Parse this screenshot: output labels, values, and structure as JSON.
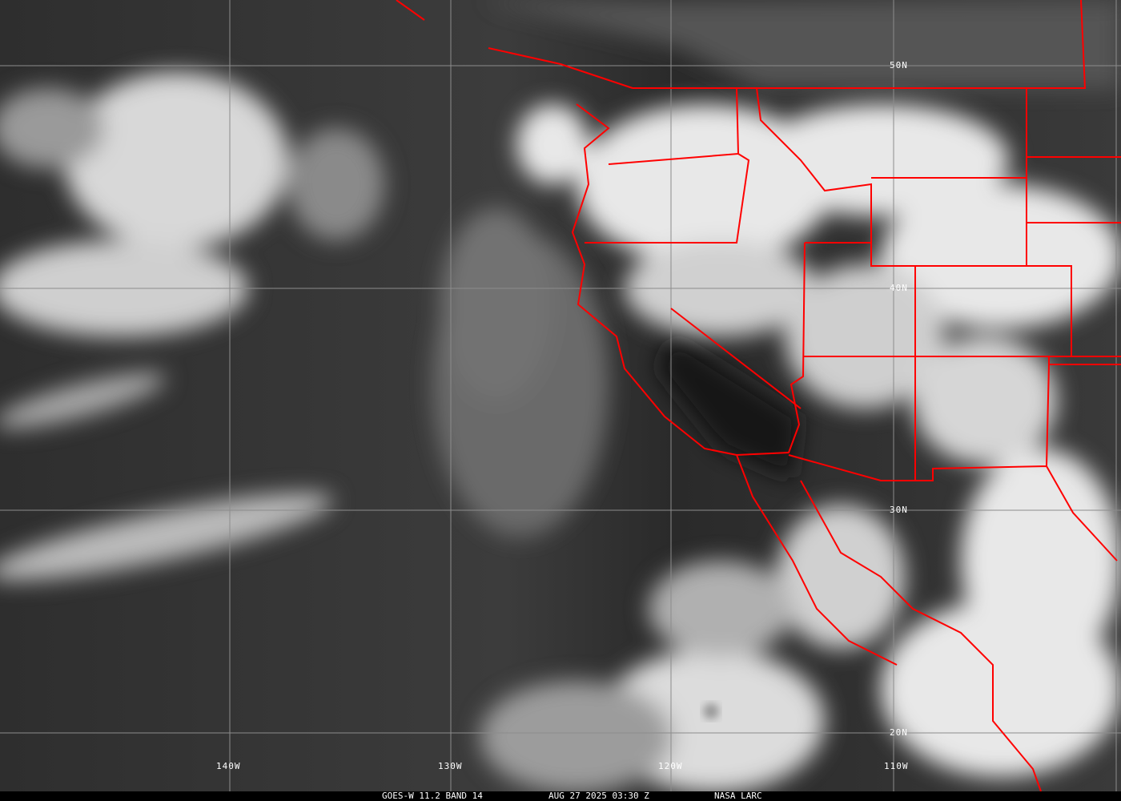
{
  "image": {
    "kind": "GOES-West infrared satellite image",
    "caption": {
      "satellite": "GOES-W 11.2 BAND 14",
      "datetime": "AUG 27 2025 03:30 Z",
      "source": "NASA LARC"
    },
    "lat_labels": [
      "50N",
      "40N",
      "30N",
      "20N"
    ],
    "lon_labels": [
      "140W",
      "130W",
      "120W",
      "110W"
    ],
    "colors": {
      "borders": "#ff0000",
      "grid": "#8c8c8c",
      "caption_bg": "#000000"
    }
  }
}
